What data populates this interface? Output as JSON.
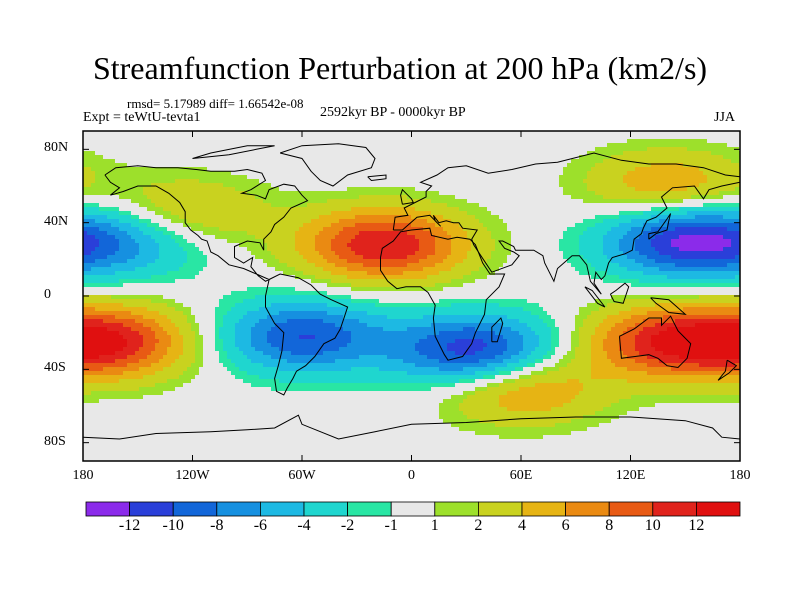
{
  "title": "Streamfunction Perturbation at 200 hPa (km2/s)",
  "stats": "rmsd= 5.17989 diff= 1.66542e-08",
  "experiment": "Expt = teWtU-tevta1",
  "period": "2592kyr BP - 0000kyr BP",
  "season": "JJA",
  "chart_data": {
    "type": "heatmap",
    "projection": "cylindrical equidistant",
    "xlim": [
      -180,
      180
    ],
    "ylim": [
      -90,
      90
    ],
    "x_ticks": [
      "180",
      "120W",
      "60W",
      "0",
      "60E",
      "120E",
      "180"
    ],
    "y_ticks": [
      "80N",
      "40N",
      "0",
      "40S",
      "80S"
    ],
    "colorbar": {
      "levels": [
        "-12",
        "-10",
        "-8",
        "-6",
        "-4",
        "-2",
        "-1",
        "1",
        "2",
        "4",
        "6",
        "8",
        "10",
        "12"
      ],
      "colors": [
        "#8b2bea",
        "#2a3fd9",
        "#1266d9",
        "#1690e0",
        "#1db9e3",
        "#1fd6cf",
        "#29e6a4",
        "#e8e8e8",
        "#9de02b",
        "#c9d21f",
        "#e6b414",
        "#ea8a12",
        "#e85a14",
        "#e0231c",
        "#e01010"
      ]
    },
    "features": [
      {
        "name": "positive center N Atlantic / N Africa",
        "lon": -15,
        "lat": 28,
        "value": 12
      },
      {
        "name": "negative center NW Pacific",
        "lon": 150,
        "lat": 30,
        "value": -12
      },
      {
        "name": "positive center Australia / S Indian Ocean",
        "lon": 140,
        "lat": -25,
        "value": 11
      },
      {
        "name": "positive center S Pacific",
        "lon": -165,
        "lat": -25,
        "value": 11
      },
      {
        "name": "negative center S Atlantic",
        "lon": -60,
        "lat": -22,
        "value": -10
      },
      {
        "name": "negative center S Africa",
        "lon": 35,
        "lat": -30,
        "value": -12
      },
      {
        "name": "positive center N Pacific",
        "lon": 140,
        "lat": 60,
        "value": 6
      },
      {
        "name": "positive center S Indian Ocean",
        "lon": 60,
        "lat": -50,
        "value": 7
      },
      {
        "name": "negative center E Pacific",
        "lon": -155,
        "lat": 30,
        "value": -6
      },
      {
        "name": "positive center W Pacific",
        "lon": -125,
        "lat": 45,
        "value": 5
      }
    ]
  }
}
